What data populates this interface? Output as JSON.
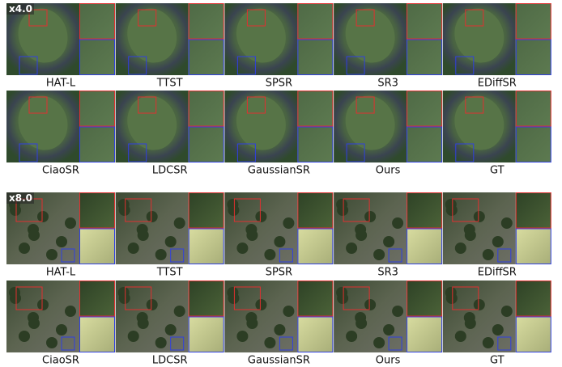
{
  "groups": [
    {
      "scale": "x4.0",
      "rows": [
        [
          "HAT-L",
          "TTST",
          "SPSR",
          "SR3",
          "EDiffSR"
        ],
        [
          "CiaoSR",
          "LDCSR",
          "GaussianSR",
          "Ours",
          "GT"
        ]
      ]
    },
    {
      "scale": "x8.0",
      "rows": [
        [
          "HAT-L",
          "TTST",
          "SPSR",
          "SR3",
          "EDiffSR"
        ],
        [
          "CiaoSR",
          "LDCSR",
          "GaussianSR",
          "Ours",
          "GT"
        ]
      ]
    }
  ]
}
